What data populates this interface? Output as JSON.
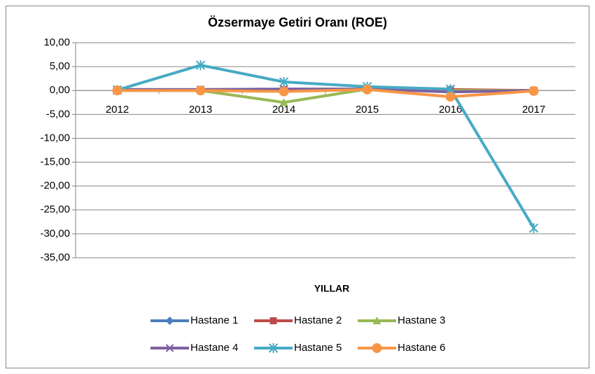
{
  "chart_data": {
    "type": "line",
    "title": "Özsermaye Getiri Oranı (ROE)",
    "x_label": "YILLAR",
    "categories": [
      "2012",
      "2013",
      "2014",
      "2015",
      "2016",
      "2017"
    ],
    "series": [
      {
        "name": "Hastane 1",
        "color": "#4a7ebb",
        "marker": "diamond",
        "values": [
          0.1,
          0.1,
          0.1,
          0.1,
          0.1,
          0.0
        ]
      },
      {
        "name": "Hastane 2",
        "color": "#be4b48",
        "marker": "square",
        "values": [
          0.2,
          0.2,
          0.2,
          0.2,
          0.2,
          0.0
        ]
      },
      {
        "name": "Hastane 3",
        "color": "#98b954",
        "marker": "triangle",
        "values": [
          0.0,
          0.0,
          -2.5,
          0.3,
          0.0,
          0.0
        ]
      },
      {
        "name": "Hastane 4",
        "color": "#7d60a0",
        "marker": "x",
        "values": [
          0.2,
          0.2,
          0.3,
          0.3,
          -0.3,
          0.0
        ]
      },
      {
        "name": "Hastane 5",
        "color": "#46aac5",
        "marker": "star",
        "values": [
          0.1,
          5.3,
          1.8,
          0.8,
          0.3,
          -28.8
        ]
      },
      {
        "name": "Hastane 6",
        "color": "#f79646",
        "marker": "circle",
        "values": [
          0.0,
          0.0,
          -0.2,
          0.2,
          -1.3,
          -0.1
        ]
      }
    ],
    "ylim": [
      -35,
      10
    ],
    "yticks": [
      {
        "value": 10,
        "label": "10,00"
      },
      {
        "value": 5,
        "label": "5,00"
      },
      {
        "value": 0,
        "label": "0,00"
      },
      {
        "value": -5,
        "label": "-5,00"
      },
      {
        "value": -10,
        "label": "-10,00"
      },
      {
        "value": -15,
        "label": "-15,00"
      },
      {
        "value": -20,
        "label": "-20,00"
      },
      {
        "value": -25,
        "label": "-25,00"
      },
      {
        "value": -30,
        "label": "-30,00"
      },
      {
        "value": -35,
        "label": "-35,00"
      }
    ],
    "grid": true,
    "legend": "bottom"
  }
}
